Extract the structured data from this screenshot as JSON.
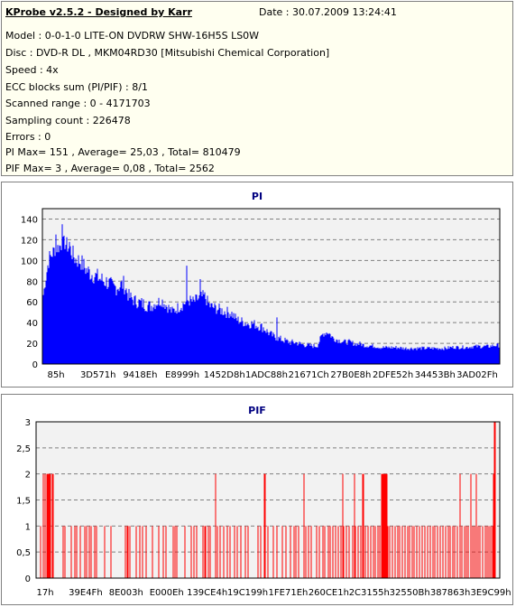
{
  "header": {
    "title": "KProbe v2.5.2 - Designed by Karr",
    "date": "Date : 30.07.2009 13:24:41"
  },
  "info": [
    "Model : 0-0-1-0 LITE-ON DVDRW SHW-16H5S  LS0W",
    "Disc : DVD-R DL , MKM04RD30 [Mitsubishi Chemical Corporation]",
    "Speed : 4x",
    "ECC blocks sum (PI/PIF) : 8/1",
    "Scanned range : 0 - 4171703",
    "Sampling count : 226478",
    "Errors : 0",
    "PI Max= 151 , Average= 25,03 , Total= 810479",
    "PIF Max= 3 , Average= 0,08 , Total= 2562"
  ],
  "colors": {
    "plot_bg": "#f2f2f2",
    "title": "#000080",
    "pi_series": "#0000ff",
    "pif_series": "#ff0000",
    "grid": "#808080"
  },
  "chart_data": [
    {
      "type": "area",
      "title": "PI",
      "xlabel": "",
      "ylabel": "",
      "x_ticks": [
        "85h",
        "3D571h",
        "9418Eh",
        "E8999h",
        "1452D8h",
        "1ADC88h",
        "21671Ch",
        "27B0E8h",
        "2DFE52h",
        "34453Bh",
        "3AD02Fh"
      ],
      "y_ticks": [
        0,
        20,
        40,
        60,
        80,
        100,
        120,
        140
      ],
      "ylim": [
        0,
        150
      ],
      "grid": "dashed-horizontal",
      "series": [
        {
          "values_envelope_top": [
            70,
            110,
            117,
            121,
            125,
            120,
            110,
            108,
            100,
            96,
            93,
            90,
            88,
            82,
            84,
            86,
            72,
            68,
            66,
            64,
            62,
            65,
            68,
            62,
            56,
            60,
            64,
            68,
            66,
            70,
            72,
            62,
            60,
            58,
            56,
            55,
            48,
            46,
            44,
            44,
            42,
            40,
            34,
            30,
            28,
            26,
            24,
            24,
            22,
            21,
            20,
            20,
            32,
            35,
            28,
            26,
            24,
            24,
            22,
            22,
            20,
            20,
            19,
            18,
            18,
            18,
            18,
            17,
            17,
            17,
            17,
            17,
            17,
            17,
            17,
            17,
            18,
            18,
            18,
            18,
            19,
            19,
            19,
            19,
            20,
            20
          ],
          "values_envelope_bottom": [
            55,
            68,
            85,
            88,
            90,
            80,
            70,
            68,
            60,
            56,
            54,
            50,
            48,
            44,
            45,
            47,
            40,
            38,
            36,
            34,
            34,
            38,
            40,
            36,
            32,
            34,
            36,
            40,
            38,
            42,
            44,
            36,
            34,
            32,
            30,
            30,
            26,
            24,
            22,
            22,
            20,
            18,
            16,
            14,
            12,
            11,
            10,
            10,
            9,
            9,
            9,
            9,
            18,
            18,
            14,
            13,
            12,
            12,
            11,
            11,
            10,
            10,
            10,
            9,
            9,
            9,
            9,
            9,
            9,
            9,
            9,
            9,
            9,
            9,
            9,
            9,
            10,
            10,
            10,
            10,
            10,
            10,
            10,
            10,
            11,
            11
          ]
        }
      ]
    },
    {
      "type": "bar",
      "title": "PIF",
      "xlabel": "",
      "ylabel": "",
      "x_ticks": [
        "17h",
        "39E4Fh",
        "8E003h",
        "E000Eh",
        "139CE4h",
        "19C199h",
        "1FE71Eh",
        "260CE1h",
        "2C3155h",
        "32550Bh",
        "387863h",
        "3E9C99h"
      ],
      "y_ticks": [
        "0",
        "0,5",
        "1",
        "1,5",
        "2",
        "2,5",
        "3"
      ],
      "ylim": [
        0,
        3
      ],
      "grid": "dashed-horizontal",
      "spikes": [
        [
          4,
          1
        ],
        [
          7,
          2
        ],
        [
          9,
          2
        ],
        [
          11,
          2
        ],
        [
          12,
          2
        ],
        [
          13,
          2
        ],
        [
          14,
          2
        ],
        [
          15,
          2
        ],
        [
          17,
          2
        ],
        [
          18,
          2
        ],
        [
          29,
          1
        ],
        [
          31,
          1
        ],
        [
          38,
          1
        ],
        [
          42,
          1
        ],
        [
          44,
          1
        ],
        [
          48,
          1
        ],
        [
          53,
          1
        ],
        [
          55,
          1
        ],
        [
          58,
          1
        ],
        [
          60,
          1
        ],
        [
          64,
          1
        ],
        [
          66,
          1
        ],
        [
          75,
          1
        ],
        [
          82,
          1
        ],
        [
          98,
          1
        ],
        [
          100,
          1
        ],
        [
          101,
          1
        ],
        [
          103,
          1
        ],
        [
          110,
          1
        ],
        [
          114,
          1
        ],
        [
          117,
          1
        ],
        [
          121,
          1
        ],
        [
          128,
          1
        ],
        [
          135,
          1
        ],
        [
          140,
          1
        ],
        [
          143,
          1
        ],
        [
          151,
          1
        ],
        [
          153,
          1
        ],
        [
          155,
          1
        ],
        [
          164,
          1
        ],
        [
          171,
          1
        ],
        [
          174,
          1
        ],
        [
          177,
          1
        ],
        [
          184,
          1
        ],
        [
          186,
          1
        ],
        [
          187,
          1
        ],
        [
          190,
          1
        ],
        [
          192,
          1
        ],
        [
          198,
          2
        ],
        [
          200,
          1
        ],
        [
          203,
          1
        ],
        [
          207,
          1
        ],
        [
          211,
          1
        ],
        [
          214,
          1
        ],
        [
          219,
          1
        ],
        [
          222,
          1
        ],
        [
          226,
          1
        ],
        [
          231,
          1
        ],
        [
          234,
          1
        ],
        [
          245,
          1
        ],
        [
          248,
          1
        ],
        [
          252,
          2
        ],
        [
          253,
          2
        ],
        [
          256,
          1
        ],
        [
          262,
          1
        ],
        [
          266,
          1
        ],
        [
          272,
          1
        ],
        [
          276,
          1
        ],
        [
          281,
          1
        ],
        [
          285,
          1
        ],
        [
          287,
          1
        ],
        [
          290,
          1
        ],
        [
          296,
          2
        ],
        [
          298,
          1
        ],
        [
          301,
          1
        ],
        [
          304,
          1
        ],
        [
          310,
          1
        ],
        [
          313,
          1
        ],
        [
          317,
          1
        ],
        [
          319,
          1
        ],
        [
          323,
          1
        ],
        [
          325,
          1
        ],
        [
          328,
          1
        ],
        [
          331,
          1
        ],
        [
          334,
          1
        ],
        [
          337,
          1
        ],
        [
          339,
          2
        ],
        [
          340,
          1
        ],
        [
          343,
          1
        ],
        [
          346,
          1
        ],
        [
          350,
          1
        ],
        [
          352,
          2
        ],
        [
          353,
          1
        ],
        [
          356,
          1
        ],
        [
          359,
          1
        ],
        [
          361,
          2
        ],
        [
          362,
          2
        ],
        [
          364,
          1
        ],
        [
          367,
          1
        ],
        [
          370,
          1
        ],
        [
          373,
          1
        ],
        [
          375,
          1
        ],
        [
          378,
          1
        ],
        [
          380,
          1
        ],
        [
          382,
          2
        ],
        [
          383,
          2
        ],
        [
          384,
          2
        ],
        [
          385,
          2
        ],
        [
          386,
          2
        ],
        [
          387,
          2
        ],
        [
          388,
          2
        ],
        [
          389,
          1
        ],
        [
          391,
          1
        ],
        [
          394,
          1
        ],
        [
          397,
          1
        ],
        [
          400,
          1
        ],
        [
          402,
          1
        ],
        [
          405,
          1
        ],
        [
          408,
          1
        ],
        [
          411,
          1
        ],
        [
          413,
          1
        ],
        [
          416,
          1
        ],
        [
          418,
          1
        ],
        [
          421,
          1
        ],
        [
          424,
          1
        ],
        [
          427,
          1
        ],
        [
          430,
          1
        ],
        [
          433,
          1
        ],
        [
          436,
          1
        ],
        [
          439,
          1
        ],
        [
          441,
          1
        ],
        [
          444,
          1
        ],
        [
          447,
          1
        ],
        [
          450,
          1
        ],
        [
          453,
          1
        ],
        [
          456,
          1
        ],
        [
          458,
          1
        ],
        [
          461,
          1
        ],
        [
          463,
          1
        ],
        [
          466,
          1
        ],
        [
          469,
          2
        ],
        [
          471,
          1
        ],
        [
          474,
          1
        ],
        [
          476,
          1
        ],
        [
          478,
          1
        ],
        [
          481,
          2
        ],
        [
          483,
          1
        ],
        [
          485,
          1
        ],
        [
          487,
          2
        ],
        [
          489,
          1
        ],
        [
          491,
          1
        ],
        [
          494,
          1
        ],
        [
          497,
          1
        ],
        [
          499,
          1
        ],
        [
          501,
          1
        ],
        [
          503,
          1
        ],
        [
          505,
          1
        ],
        [
          506,
          2
        ],
        [
          507,
          3
        ],
        [
          508,
          3
        ]
      ]
    }
  ]
}
